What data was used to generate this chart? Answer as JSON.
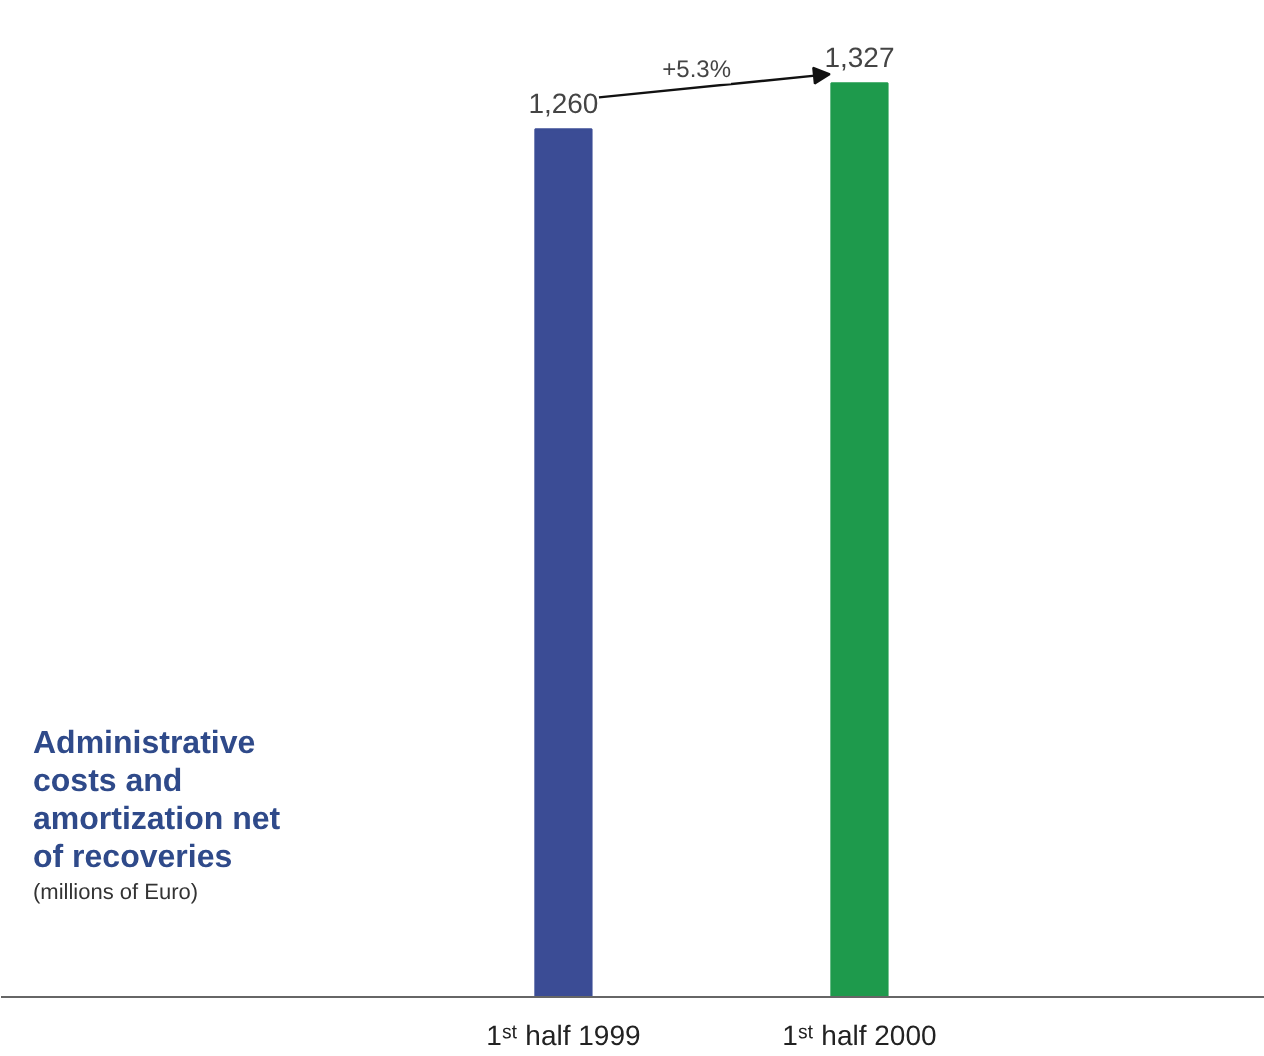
{
  "chart_data": {
    "type": "bar",
    "title": "Administrative costs and amortization net of recoveries",
    "subtitle": "(millions of Euro)",
    "categories": [
      "1ˢᵗ half 1999",
      "1ˢᵗ half 2000"
    ],
    "values": [
      1260,
      1327
    ],
    "colors": [
      "#3b4c95",
      "#1e9a4c"
    ],
    "value_labels": [
      "1,260",
      "1,327"
    ],
    "annotations": [
      "+5.3%"
    ]
  }
}
